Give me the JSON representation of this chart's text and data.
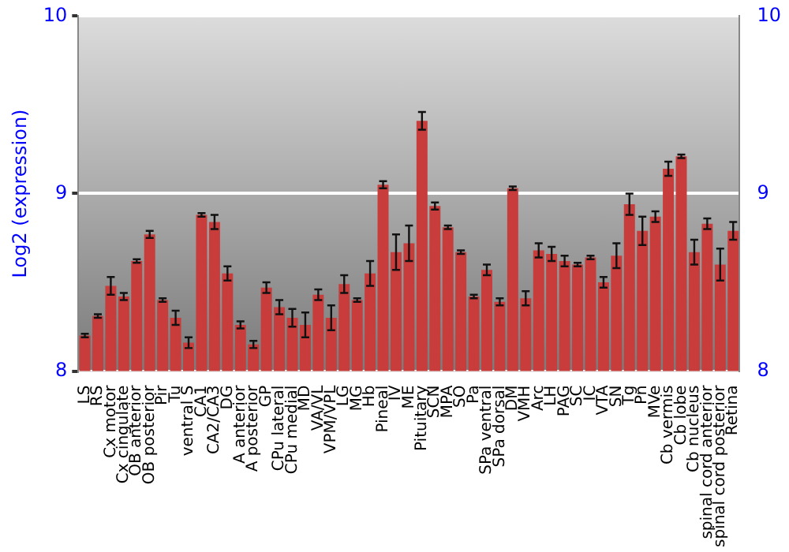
{
  "chart_data": {
    "type": "bar",
    "ylabel": "Log2 (expression)",
    "categories": [
      "LS",
      "RS",
      "Cx motor",
      "Cx cingulate",
      "OB anterior",
      "OB posterior",
      "Pir",
      "Tu",
      "ventral S",
      "CA1",
      "CA2/CA3",
      "DG",
      "A anterior",
      "A posterior",
      "GP",
      "CPu lateral",
      "CPu medial",
      "MD",
      "VA/VL",
      "VPM/VPL",
      "LG",
      "MG",
      "Hb",
      "Pineal",
      "IV",
      "ME",
      "Pituitary",
      "SCN",
      "MPA",
      "SO",
      "Pa",
      "SPa ventral",
      "SPa dorsal",
      "DM",
      "VMH",
      "Arc",
      "LH",
      "PAG",
      "SC",
      "IC",
      "VTA",
      "SN",
      "Tg",
      "Pn",
      "MVe",
      "Cb vermis",
      "Cb lobe",
      "Cb nucleus",
      "spinal cord anterior",
      "spinal cord posterior",
      "Retina"
    ],
    "series": [
      {
        "color": "#c83c3c",
        "values": [
          8.2,
          8.31,
          8.48,
          8.42,
          8.62,
          8.77,
          8.4,
          8.3,
          8.16,
          8.88,
          8.84,
          8.55,
          8.26,
          8.15,
          8.47,
          8.36,
          8.3,
          8.26,
          8.43,
          8.3,
          8.49,
          8.4,
          8.55,
          9.05,
          8.67,
          8.72,
          9.41,
          8.93,
          8.81,
          8.67,
          8.42,
          8.57,
          8.39,
          9.03,
          8.41,
          8.68,
          8.66,
          8.62,
          8.6,
          8.64,
          8.5,
          8.65,
          8.94,
          8.79,
          8.87,
          9.14,
          9.21,
          8.67,
          8.83,
          8.6,
          8.79
        ],
        "errors": [
          0.01,
          0.01,
          0.05,
          0.02,
          0.01,
          0.02,
          0.01,
          0.04,
          0.03,
          0.01,
          0.04,
          0.04,
          0.02,
          0.02,
          0.03,
          0.04,
          0.05,
          0.07,
          0.03,
          0.07,
          0.05,
          0.01,
          0.07,
          0.02,
          0.1,
          0.1,
          0.05,
          0.02,
          0.01,
          0.01,
          0.01,
          0.03,
          0.02,
          0.01,
          0.04,
          0.04,
          0.04,
          0.03,
          0.01,
          0.01,
          0.03,
          0.07,
          0.06,
          0.08,
          0.03,
          0.04,
          0.01,
          0.07,
          0.03,
          0.09,
          0.05
        ]
      }
    ],
    "ylim": [
      8,
      10
    ],
    "yticks": [
      8,
      9,
      10
    ],
    "y2lim": [
      8,
      10
    ],
    "y2ticks": [
      8,
      9,
      10
    ],
    "grid": "y",
    "legend": false
  }
}
